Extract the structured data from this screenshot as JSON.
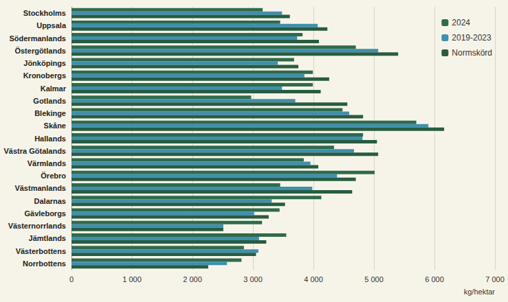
{
  "chart_data": {
    "type": "bar",
    "orientation": "horizontal",
    "x_label": "kg/hektar",
    "categories": [
      "Stockholms",
      "Uppsala",
      "Södermanlands",
      "Östergötlands",
      "Jönköpings",
      "Kronobergs",
      "Kalmar",
      "Gotlands",
      "Blekinge",
      "Skåne",
      "Hallands",
      "Västra Götalands",
      "Värmlands",
      "Örebro",
      "Västmanlands",
      "Dalarnas",
      "Gävleborgs",
      "Västernorrlands",
      "Jämtlands",
      "Västerbottens",
      "Norrbottens"
    ],
    "series": [
      {
        "name": "2024",
        "color": "#2f6b4b",
        "values": [
          3160,
          3450,
          3820,
          4700,
          3680,
          3990,
          3990,
          2970,
          4480,
          5700,
          4820,
          4340,
          3840,
          5010,
          3450,
          4130,
          3440,
          3150,
          3550,
          2850,
          2810
        ]
      },
      {
        "name": "2019-2023",
        "color": "#3f8fae",
        "values": [
          3480,
          4070,
          3730,
          5070,
          3410,
          3850,
          3480,
          3700,
          4590,
          5900,
          4810,
          4670,
          3950,
          4390,
          3980,
          3310,
          3020,
          2510,
          3100,
          3090,
          2570
        ]
      },
      {
        "name": "Normskörd",
        "color": "#285c42",
        "values": [
          3610,
          4230,
          4090,
          5400,
          3750,
          4260,
          4120,
          4560,
          4820,
          6160,
          5050,
          5070,
          4080,
          4700,
          4640,
          3530,
          3260,
          2510,
          3220,
          3050,
          2260
        ]
      }
    ],
    "xlim": [
      0,
      7000
    ],
    "xticks": [
      0,
      {
        "value": 1000,
        "label": "1 000"
      },
      {
        "value": 2000,
        "label": "2 000"
      },
      {
        "value": 3000,
        "label": "3 000"
      },
      {
        "value": 4000,
        "label": "4 000"
      },
      {
        "value": 5000,
        "label": "5 000"
      },
      {
        "value": 6000,
        "label": "6 000"
      },
      {
        "value": 7000,
        "label": "7 000"
      }
    ],
    "grid": true,
    "legend": "upper right"
  }
}
